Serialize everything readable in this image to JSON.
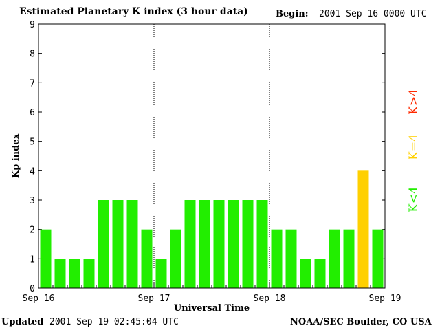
{
  "header": {
    "title": "Estimated Planetary K index (3 hour data)",
    "begin_label": "Begin:",
    "begin_value": "2001 Sep 16 0000 UTC"
  },
  "footer": {
    "updated_label": "Updated",
    "updated_value": "2001 Sep 19 02:45:04 UTC",
    "credit": "NOAA/SEC Boulder, CO USA"
  },
  "legend": {
    "low": "K<4",
    "equal": "K=4",
    "high": "K>4"
  },
  "colors": {
    "low": "#22ee00",
    "equal": "#ffd000",
    "high": "#ff2a00",
    "axis": "#000000"
  },
  "chart_data": {
    "type": "bar",
    "title": "Estimated Planetary K index (3 hour data)",
    "xlabel": "Universal Time",
    "ylabel": "Kp index",
    "ylim": [
      0,
      9
    ],
    "yticks": [
      0,
      1,
      2,
      3,
      4,
      5,
      6,
      7,
      8,
      9
    ],
    "day_labels": [
      "Sep 16",
      "Sep 17",
      "Sep 18",
      "Sep 19"
    ],
    "values": [
      2,
      1,
      1,
      1,
      3,
      3,
      3,
      2,
      1,
      2,
      3,
      3,
      3,
      3,
      3,
      3,
      2,
      2,
      1,
      1,
      2,
      2,
      4,
      2
    ],
    "day_separators": "dotted"
  }
}
